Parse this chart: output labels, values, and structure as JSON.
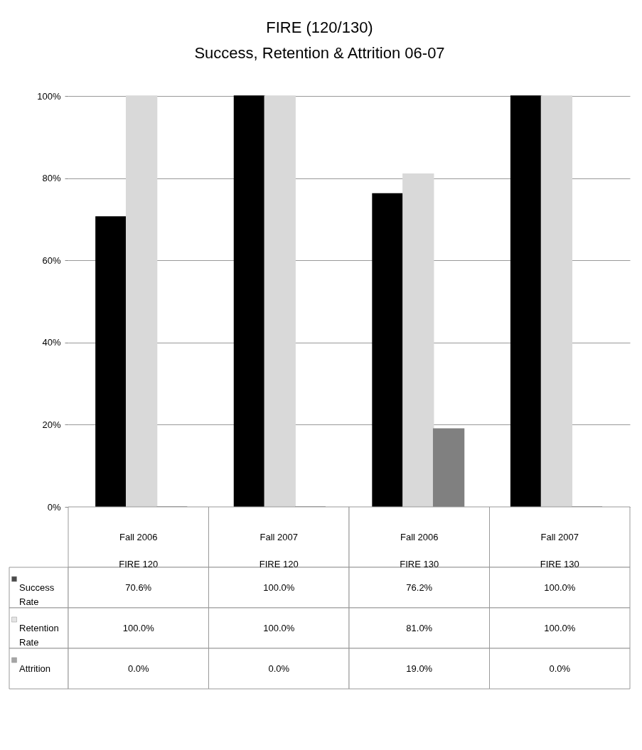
{
  "chart_data": {
    "type": "bar",
    "title": "FIRE (120/130)",
    "subtitle": "Success, Retention & Attrition 06-07",
    "categories": [
      "Fall 2006\nFIRE 120",
      "Fall 2007\nFIRE 120",
      "Fall 2006\nFIRE 130",
      "Fall 2007\nFIRE 130"
    ],
    "series": [
      {
        "name": "Success Rate",
        "color": "#000000",
        "values": [
          70.6,
          100,
          76.2,
          100
        ],
        "value_labels": [
          "70.6%",
          "100.0%",
          "76.2%",
          "100.0%"
        ]
      },
      {
        "name": "Retention Rate",
        "color": "#d9d9d9",
        "values": [
          100,
          100,
          81,
          100
        ],
        "value_labels": [
          "100.0%",
          "100.0%",
          "81.0%",
          "100.0%"
        ]
      },
      {
        "name": "Attrition",
        "color": "#808080",
        "values": [
          0,
          0,
          19,
          0
        ],
        "value_labels": [
          "0.0%",
          "0.0%",
          "19.0%",
          "0.0%"
        ]
      }
    ],
    "ylim": [
      0,
      100
    ],
    "yticks": [
      {
        "value": 0,
        "label": "0%"
      },
      {
        "value": 20,
        "label": "20%"
      },
      {
        "value": 40,
        "label": "40%"
      },
      {
        "value": 60,
        "label": "60%"
      },
      {
        "value": 80,
        "label": "80%"
      },
      {
        "value": 100,
        "label": "100%"
      }
    ],
    "grid": "y",
    "legend": "bottom left"
  }
}
